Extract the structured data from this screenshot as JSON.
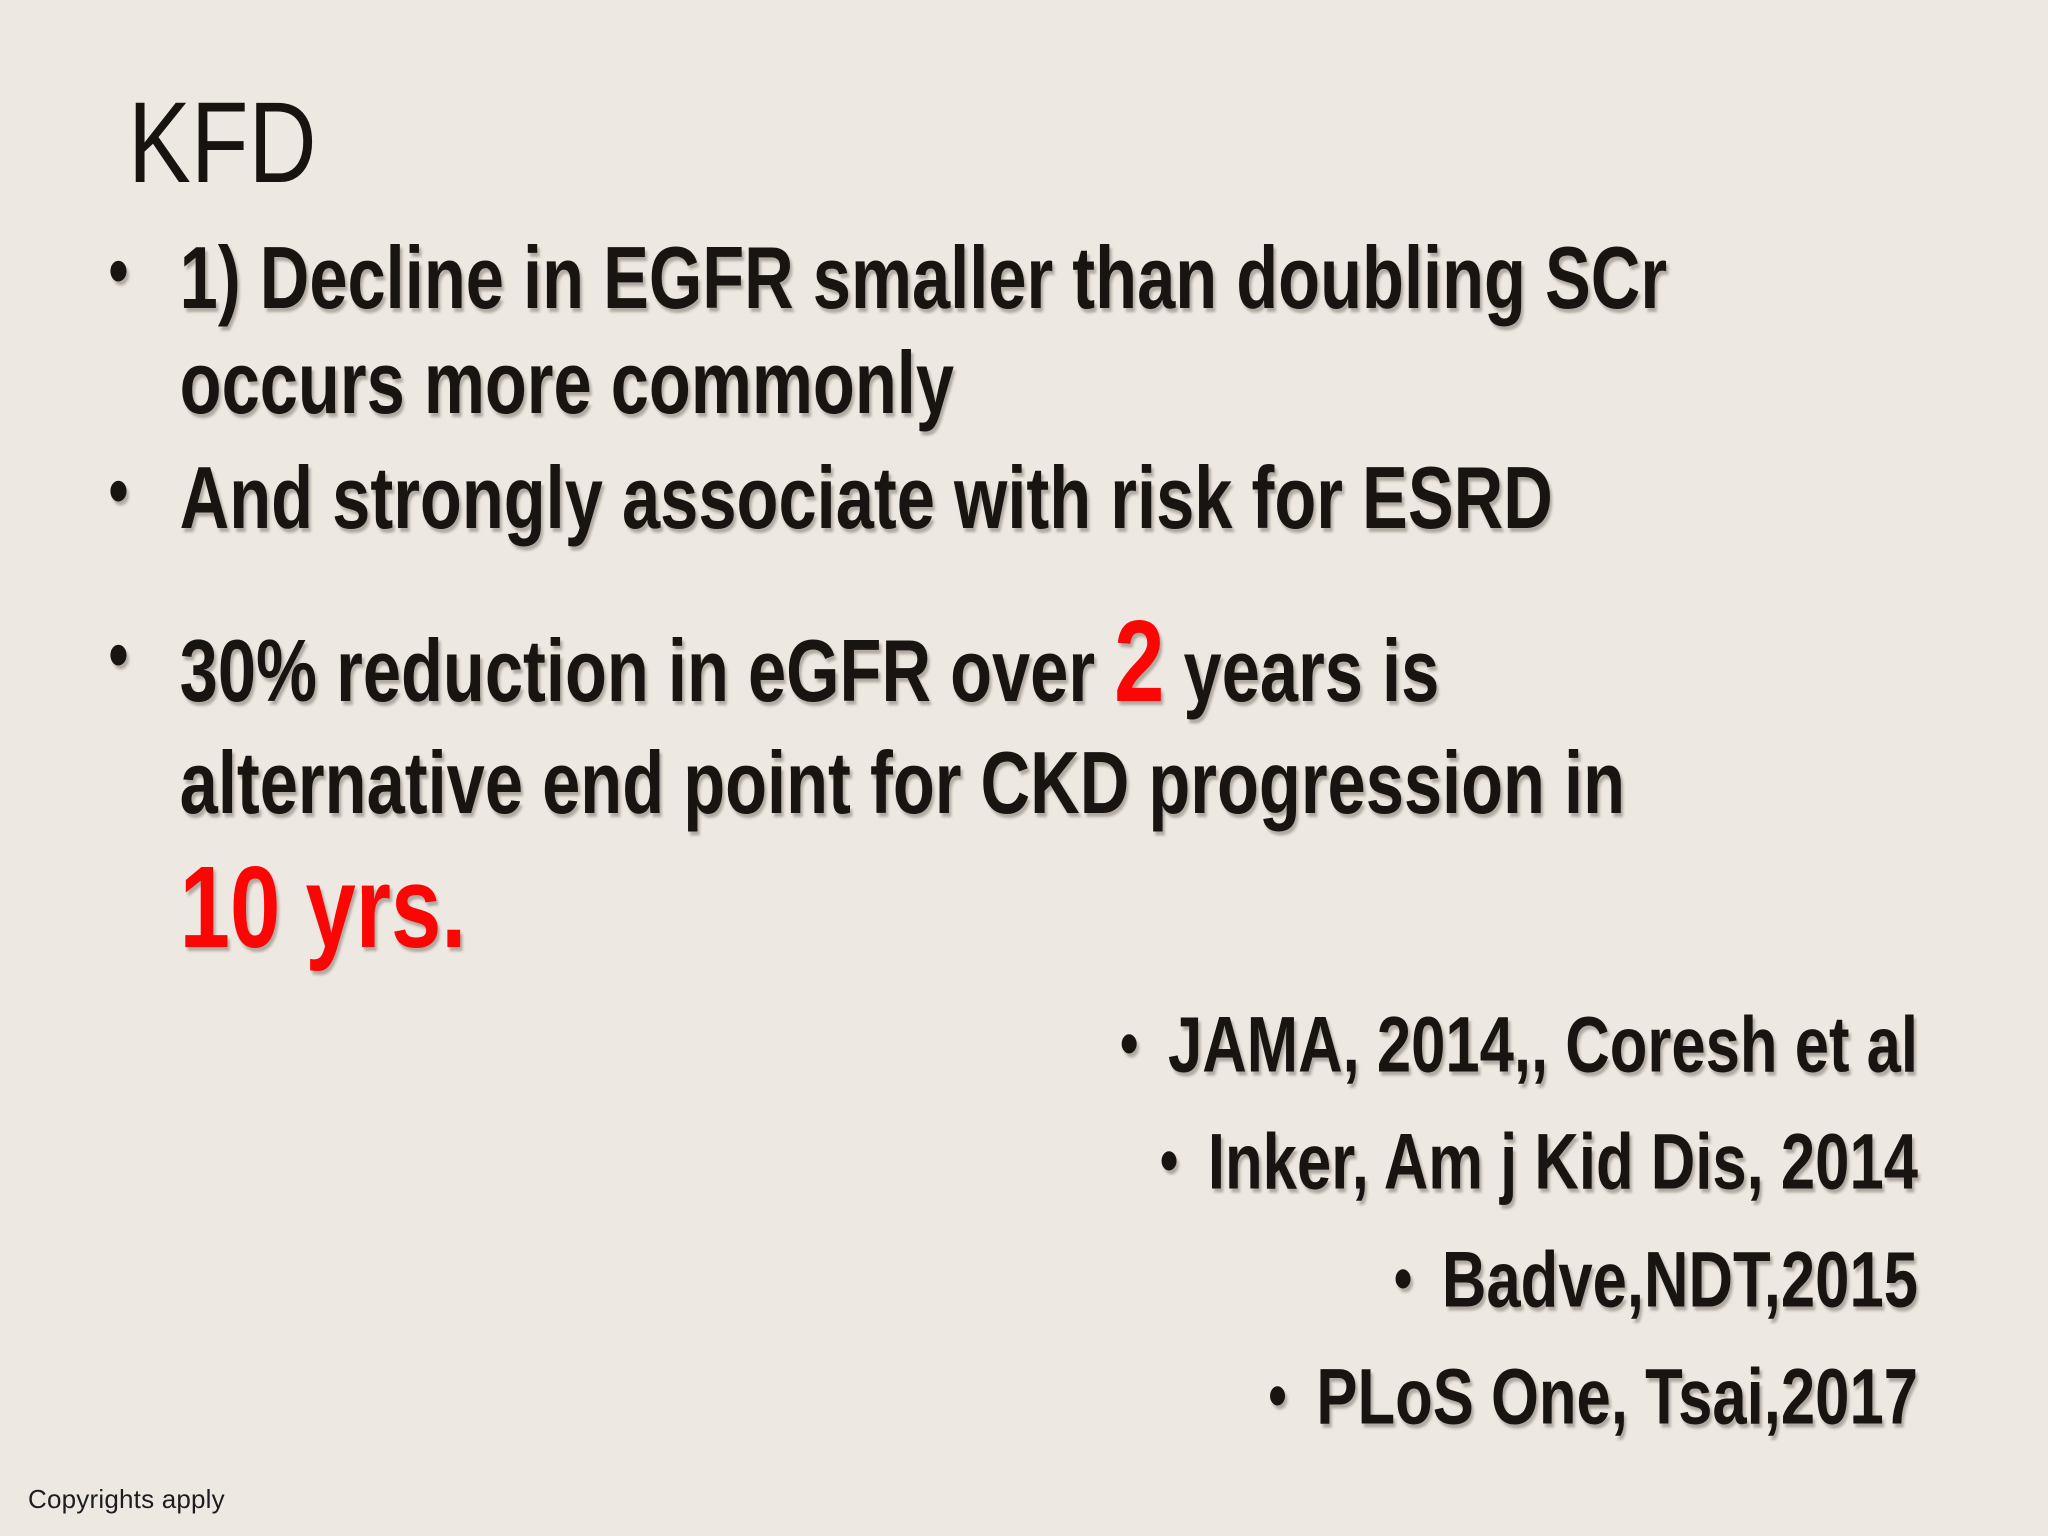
{
  "slide": {
    "title": "KFD",
    "bullets": {
      "b1": {
        "line1": "1) Decline in EGFR smaller than doubling SCr",
        "line2": "occurs more commonly"
      },
      "b2": {
        "line1": "And strongly associate with risk for ESRD"
      },
      "b3": {
        "line1_before": "30% reduction in eGFR over ",
        "line1_emphasis": "2",
        "line1_after": " years is",
        "line2": "alternative end point for CKD progression in",
        "line3_emphasis": "10 yrs."
      }
    },
    "citations": [
      "JAMA, 2014,, Coresh et al",
      "Inker, Am j Kid Dis, 2014",
      "Badve,NDT,2015",
      "PLoS One, Tsai,2017"
    ],
    "footer": "Copyrights apply"
  },
  "glyphs": {
    "bullet": "•"
  },
  "colors": {
    "background": "#EDE8E1",
    "text": "#181411",
    "emphasis_red": "#FB0505",
    "footer_text": "#1D1C20"
  }
}
